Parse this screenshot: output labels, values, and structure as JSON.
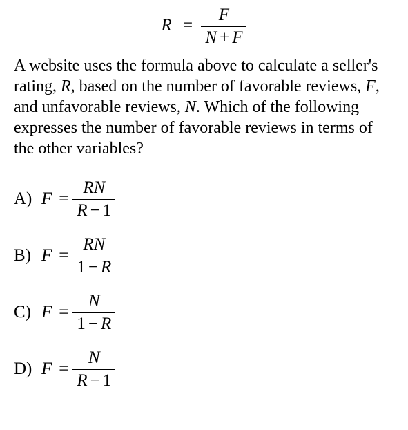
{
  "formula": {
    "lhs": "R",
    "eq": "=",
    "num": "F",
    "den_left": "N",
    "den_plus": "+",
    "den_right": "F"
  },
  "question": {
    "p1": "A website uses the formula above to calculate a seller's rating, ",
    "v1": "R",
    "p2": ", based on the number of favorable reviews, ",
    "v2": "F",
    "p3": ", and unfavorable reviews, ",
    "v3": "N",
    "p4": ".  Which of the following expresses the number of favorable reviews in terms of the other variables?"
  },
  "choices": {
    "a": {
      "letter": "A)",
      "lhs": "F",
      "eq": "=",
      "num": "RN",
      "den_left": "R",
      "den_op": "−",
      "den_right": "1"
    },
    "b": {
      "letter": "B)",
      "lhs": "F",
      "eq": "=",
      "num": "RN",
      "den_left": "1",
      "den_op": "−",
      "den_right": "R"
    },
    "c": {
      "letter": "C)",
      "lhs": "F",
      "eq": "=",
      "num": "N",
      "den_left": "1",
      "den_op": "−",
      "den_right": "R"
    },
    "d": {
      "letter": "D)",
      "lhs": "F",
      "eq": "=",
      "num": "N",
      "den_left": "R",
      "den_op": "−",
      "den_right": "1"
    }
  }
}
